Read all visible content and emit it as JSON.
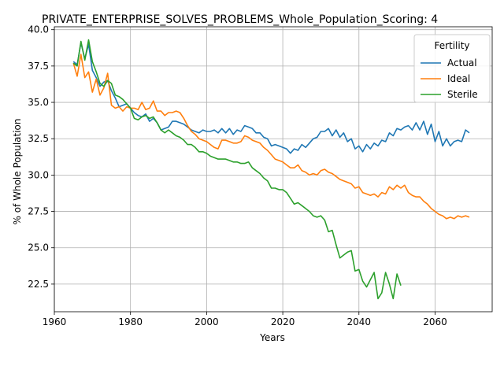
{
  "chart_data": {
    "type": "line",
    "title": "PRIVATE_ENTERPRISE_SOLVES_PROBLEMS_Whole_Population_Scoring: 4",
    "xlabel": "Years",
    "ylabel": "% of Whole Population",
    "xlim": [
      1960,
      2075
    ],
    "ylim": [
      20.6,
      40.2
    ],
    "xticks": [
      1960,
      1980,
      2000,
      2020,
      2040,
      2060
    ],
    "yticks": [
      22.5,
      25.0,
      27.5,
      30.0,
      32.5,
      35.0,
      37.5,
      40.0
    ],
    "grid": true,
    "legend": {
      "title": "Fertility",
      "placement": "top-right"
    },
    "series": [
      {
        "name": "Actual",
        "color": "#1f77b4",
        "x": [
          1965,
          1966,
          1967,
          1968,
          1969,
          1970,
          1971,
          1972,
          1973,
          1974,
          1975,
          1976,
          1977,
          1978,
          1979,
          1980,
          1981,
          1982,
          1983,
          1984,
          1985,
          1986,
          1987,
          1988,
          1989,
          1990,
          1991,
          1992,
          1993,
          1994,
          1995,
          1996,
          1997,
          1998,
          1999,
          2000,
          2001,
          2002,
          2003,
          2004,
          2005,
          2006,
          2007,
          2008,
          2009,
          2010,
          2011,
          2012,
          2013,
          2014,
          2015,
          2016,
          2017,
          2018,
          2019,
          2020,
          2021,
          2022,
          2023,
          2024,
          2025,
          2026,
          2027,
          2028,
          2029,
          2030,
          2031,
          2032,
          2033,
          2034,
          2035,
          2036,
          2037,
          2038,
          2039,
          2040,
          2041,
          2042,
          2043,
          2044,
          2045,
          2046,
          2047,
          2048,
          2049,
          2050,
          2051,
          2052,
          2053,
          2054,
          2055,
          2056,
          2057,
          2058,
          2059,
          2060,
          2061,
          2062,
          2063,
          2064,
          2065,
          2066,
          2067,
          2068,
          2069,
          2070
        ],
        "values": [
          37.8,
          37.6,
          39.1,
          38.0,
          39.0,
          37.2,
          36.7,
          36.1,
          36.4,
          36.5,
          35.8,
          35.3,
          34.7,
          34.8,
          34.9,
          34.6,
          34.3,
          34.1,
          34.0,
          34.2,
          33.7,
          33.9,
          33.6,
          33.1,
          33.2,
          33.3,
          33.7,
          33.7,
          33.6,
          33.5,
          33.3,
          33.1,
          33.0,
          32.9,
          33.1,
          33.0,
          33.0,
          33.1,
          32.9,
          33.2,
          32.9,
          33.2,
          32.8,
          33.1,
          33.0,
          33.4,
          33.3,
          33.2,
          32.9,
          32.9,
          32.6,
          32.5,
          32.0,
          32.1,
          32.0,
          31.9,
          31.8,
          31.5,
          31.8,
          31.7,
          32.1,
          31.9,
          32.2,
          32.5,
          32.6,
          33.0,
          33.0,
          33.2,
          32.7,
          33.1,
          32.6,
          32.9,
          32.3,
          32.5,
          31.8,
          32.0,
          31.6,
          32.1,
          31.8,
          32.2,
          32.0,
          32.4,
          32.3,
          32.9,
          32.7,
          33.2,
          33.1,
          33.3,
          33.4,
          33.1,
          33.6,
          33.1,
          33.7,
          32.8,
          33.5,
          32.3,
          33.0,
          32.0,
          32.5,
          32.0,
          32.3,
          32.4,
          32.3,
          33.1,
          32.9,
          null
        ]
      },
      {
        "name": "Ideal",
        "color": "#ff7f0e",
        "x": [
          1965,
          1966,
          1967,
          1968,
          1969,
          1970,
          1971,
          1972,
          1973,
          1974,
          1975,
          1976,
          1977,
          1978,
          1979,
          1980,
          1981,
          1982,
          1983,
          1984,
          1985,
          1986,
          1987,
          1988,
          1989,
          1990,
          1991,
          1992,
          1993,
          1994,
          1995,
          1996,
          1997,
          1998,
          1999,
          2000,
          2001,
          2002,
          2003,
          2004,
          2005,
          2006,
          2007,
          2008,
          2009,
          2010,
          2011,
          2012,
          2013,
          2014,
          2015,
          2016,
          2017,
          2018,
          2019,
          2020,
          2021,
          2022,
          2023,
          2024,
          2025,
          2026,
          2027,
          2028,
          2029,
          2030,
          2031,
          2032,
          2033,
          2034,
          2035,
          2036,
          2037,
          2038,
          2039,
          2040,
          2041,
          2042,
          2043,
          2044,
          2045,
          2046,
          2047,
          2048,
          2049,
          2050,
          2051,
          2052,
          2053,
          2054,
          2055,
          2056,
          2057,
          2058,
          2059,
          2060,
          2061,
          2062,
          2063,
          2064,
          2065,
          2066,
          2067,
          2068,
          2069,
          2070
        ],
        "values": [
          37.7,
          36.8,
          38.3,
          36.7,
          37.1,
          35.7,
          36.6,
          35.5,
          36.0,
          37.0,
          34.8,
          34.6,
          34.7,
          34.4,
          34.7,
          34.6,
          34.6,
          34.5,
          35.0,
          34.5,
          34.6,
          35.1,
          34.4,
          34.4,
          34.1,
          34.3,
          34.3,
          34.4,
          34.3,
          33.9,
          33.4,
          33.0,
          32.8,
          32.5,
          32.4,
          32.3,
          32.1,
          31.9,
          31.8,
          32.4,
          32.4,
          32.3,
          32.2,
          32.2,
          32.3,
          32.7,
          32.6,
          32.4,
          32.3,
          32.2,
          31.9,
          31.7,
          31.4,
          31.1,
          31.0,
          30.9,
          30.7,
          30.5,
          30.5,
          30.7,
          30.3,
          30.2,
          30.0,
          30.1,
          30.0,
          30.3,
          30.4,
          30.2,
          30.1,
          29.9,
          29.7,
          29.6,
          29.5,
          29.4,
          29.1,
          29.2,
          28.8,
          28.7,
          28.6,
          28.7,
          28.5,
          28.8,
          28.7,
          29.2,
          29.0,
          29.3,
          29.1,
          29.3,
          28.8,
          28.6,
          28.5,
          28.5,
          28.2,
          28.0,
          27.7,
          27.5,
          27.3,
          27.2,
          27.0,
          27.1,
          27.0,
          27.2,
          27.1,
          27.2,
          27.1,
          null
        ]
      },
      {
        "name": "Sterile",
        "color": "#2ca02c",
        "x": [
          1965,
          1966,
          1967,
          1968,
          1969,
          1970,
          1971,
          1972,
          1973,
          1974,
          1975,
          1976,
          1977,
          1978,
          1979,
          1980,
          1981,
          1982,
          1983,
          1984,
          1985,
          1986,
          1987,
          1988,
          1989,
          1990,
          1991,
          1992,
          1993,
          1994,
          1995,
          1996,
          1997,
          1998,
          1999,
          2000,
          2001,
          2002,
          2003,
          2004,
          2005,
          2006,
          2007,
          2008,
          2009,
          2010,
          2011,
          2012,
          2013,
          2014,
          2015,
          2016,
          2017,
          2018,
          2019,
          2020,
          2021,
          2022,
          2023,
          2024,
          2025,
          2026,
          2027,
          2028,
          2029,
          2030,
          2031,
          2032,
          2033,
          2034,
          2035,
          2036,
          2037,
          2038,
          2039,
          2040,
          2041,
          2042,
          2043,
          2044,
          2045,
          2046,
          2047,
          2048,
          2049,
          2050,
          2051,
          2052
        ],
        "values": [
          37.7,
          37.5,
          39.2,
          37.9,
          39.3,
          37.8,
          37.1,
          36.3,
          36.1,
          36.5,
          36.3,
          35.5,
          35.4,
          35.2,
          34.9,
          34.6,
          33.9,
          33.8,
          34.0,
          34.1,
          33.9,
          34.0,
          33.6,
          33.1,
          32.9,
          33.1,
          32.9,
          32.7,
          32.6,
          32.4,
          32.1,
          32.1,
          31.9,
          31.6,
          31.6,
          31.5,
          31.3,
          31.2,
          31.1,
          31.1,
          31.1,
          31.0,
          30.9,
          30.9,
          30.8,
          30.8,
          30.9,
          30.5,
          30.3,
          30.1,
          29.8,
          29.6,
          29.1,
          29.1,
          29.0,
          29.0,
          28.8,
          28.4,
          28.0,
          28.1,
          27.9,
          27.7,
          27.5,
          27.2,
          27.1,
          27.2,
          26.9,
          26.1,
          26.2,
          25.2,
          24.3,
          24.5,
          24.7,
          24.8,
          23.4,
          23.5,
          22.7,
          22.3,
          22.8,
          23.3,
          21.5,
          21.9,
          23.3,
          22.5,
          21.5,
          23.2,
          22.4,
          null
        ]
      }
    ]
  }
}
